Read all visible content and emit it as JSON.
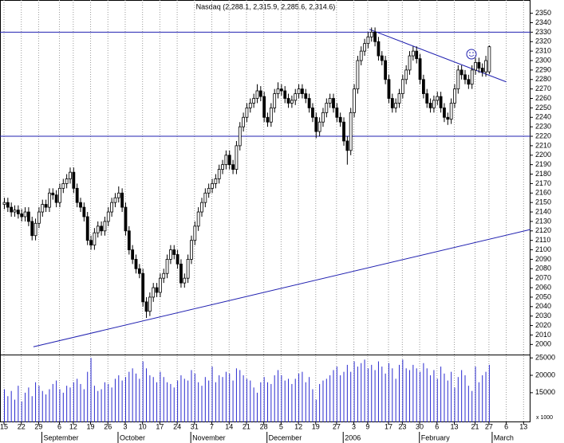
{
  "chart_data": {
    "type": "candlestick",
    "title": "Nasdaq (2,288.1, 2,315.9, 2,285.6, 2,314.6)",
    "volume_unit_label": "x 1000",
    "up_color": "#ffffff",
    "down_color": "#000000",
    "volume_color": "#2a2ad0",
    "line_color": "#2020b0",
    "open": [
      2148,
      2150,
      2145,
      2140,
      2142,
      2138,
      2135,
      2140,
      2130,
      2115,
      2128,
      2140,
      2148,
      2145,
      2160,
      2158,
      2150,
      2165,
      2170,
      2175,
      2182,
      2165,
      2150,
      2145,
      2135,
      2110,
      2105,
      2118,
      2125,
      2120,
      2130,
      2140,
      2150,
      2155,
      2160,
      2145,
      2120,
      2100,
      2090,
      2080,
      2075,
      2045,
      2035,
      2050,
      2060,
      2055,
      2070,
      2075,
      2090,
      2100,
      2095,
      2085,
      2065,
      2070,
      2090,
      2110,
      2125,
      2140,
      2150,
      2160,
      2165,
      2170,
      2175,
      2185,
      2190,
      2200,
      2190,
      2185,
      2210,
      2230,
      2240,
      2250,
      2255,
      2260,
      2268,
      2262,
      2240,
      2235,
      2250,
      2265,
      2270,
      2268,
      2260,
      2255,
      2258,
      2265,
      2270,
      2265,
      2260,
      2250,
      2240,
      2225,
      2235,
      2245,
      2255,
      2260,
      2250,
      2240,
      2235,
      2215,
      2205,
      2245,
      2270,
      2300,
      2310,
      2318,
      2325,
      2330,
      2320,
      2305,
      2300,
      2280,
      2260,
      2250,
      2255,
      2265,
      2280,
      2290,
      2305,
      2310,
      2302,
      2280,
      2265,
      2255,
      2250,
      2258,
      2262,
      2250,
      2240,
      2238,
      2255,
      2270,
      2290,
      2285,
      2280,
      2275,
      2290,
      2298,
      2292,
      2288,
      2288.1
    ],
    "high": [
      2155,
      2155,
      2150,
      2147,
      2147,
      2143,
      2145,
      2145,
      2135,
      2133,
      2145,
      2153,
      2153,
      2165,
      2165,
      2163,
      2170,
      2175,
      2180,
      2187,
      2187,
      2170,
      2155,
      2150,
      2140,
      2115,
      2123,
      2130,
      2130,
      2135,
      2145,
      2155,
      2160,
      2167,
      2165,
      2150,
      2125,
      2105,
      2095,
      2085,
      2080,
      2050,
      2055,
      2065,
      2065,
      2075,
      2080,
      2095,
      2105,
      2105,
      2100,
      2090,
      2075,
      2095,
      2115,
      2130,
      2145,
      2155,
      2165,
      2170,
      2175,
      2180,
      2190,
      2195,
      2205,
      2205,
      2195,
      2215,
      2235,
      2245,
      2255,
      2260,
      2265,
      2275,
      2273,
      2267,
      2245,
      2255,
      2270,
      2277,
      2275,
      2273,
      2265,
      2263,
      2270,
      2275,
      2275,
      2270,
      2265,
      2255,
      2245,
      2240,
      2250,
      2260,
      2265,
      2265,
      2255,
      2245,
      2240,
      2220,
      2250,
      2275,
      2305,
      2315,
      2323,
      2330,
      2335,
      2335,
      2325,
      2310,
      2305,
      2285,
      2265,
      2260,
      2270,
      2285,
      2295,
      2310,
      2315,
      2315,
      2307,
      2285,
      2270,
      2260,
      2263,
      2267,
      2267,
      2255,
      2245,
      2260,
      2275,
      2295,
      2295,
      2290,
      2285,
      2295,
      2303,
      2303,
      2297,
      2305,
      2315.9
    ],
    "low": [
      2143,
      2140,
      2135,
      2135,
      2133,
      2130,
      2130,
      2125,
      2110,
      2110,
      2123,
      2135,
      2140,
      2140,
      2153,
      2145,
      2145,
      2160,
      2165,
      2170,
      2160,
      2145,
      2140,
      2130,
      2105,
      2100,
      2100,
      2113,
      2115,
      2115,
      2125,
      2135,
      2145,
      2150,
      2140,
      2115,
      2095,
      2085,
      2075,
      2070,
      2040,
      2028,
      2030,
      2045,
      2050,
      2050,
      2065,
      2070,
      2085,
      2090,
      2080,
      2060,
      2060,
      2065,
      2085,
      2105,
      2120,
      2135,
      2145,
      2155,
      2160,
      2165,
      2170,
      2180,
      2185,
      2185,
      2180,
      2180,
      2205,
      2225,
      2235,
      2245,
      2250,
      2255,
      2257,
      2235,
      2230,
      2230,
      2245,
      2260,
      2263,
      2255,
      2250,
      2250,
      2253,
      2260,
      2260,
      2255,
      2245,
      2235,
      2218,
      2220,
      2230,
      2240,
      2250,
      2245,
      2235,
      2230,
      2210,
      2190,
      2200,
      2240,
      2265,
      2295,
      2305,
      2313,
      2320,
      2315,
      2300,
      2295,
      2275,
      2255,
      2245,
      2245,
      2250,
      2260,
      2275,
      2285,
      2300,
      2297,
      2275,
      2260,
      2250,
      2245,
      2245,
      2253,
      2245,
      2235,
      2232,
      2233,
      2250,
      2265,
      2280,
      2275,
      2270,
      2270,
      2285,
      2287,
      2283,
      2283,
      2285.6
    ],
    "close": [
      2150,
      2145,
      2140,
      2142,
      2138,
      2135,
      2140,
      2130,
      2115,
      2128,
      2140,
      2148,
      2145,
      2160,
      2158,
      2150,
      2165,
      2170,
      2175,
      2182,
      2165,
      2150,
      2145,
      2135,
      2110,
      2105,
      2118,
      2125,
      2120,
      2130,
      2140,
      2150,
      2155,
      2160,
      2145,
      2120,
      2100,
      2090,
      2080,
      2075,
      2045,
      2035,
      2050,
      2060,
      2055,
      2070,
      2075,
      2090,
      2100,
      2095,
      2085,
      2065,
      2070,
      2090,
      2110,
      2125,
      2140,
      2150,
      2160,
      2165,
      2170,
      2175,
      2185,
      2190,
      2200,
      2190,
      2185,
      2210,
      2230,
      2240,
      2250,
      2255,
      2260,
      2268,
      2262,
      2240,
      2235,
      2250,
      2265,
      2270,
      2268,
      2260,
      2255,
      2258,
      2265,
      2270,
      2265,
      2260,
      2250,
      2240,
      2225,
      2235,
      2245,
      2255,
      2260,
      2250,
      2240,
      2235,
      2215,
      2205,
      2245,
      2270,
      2300,
      2310,
      2318,
      2325,
      2330,
      2320,
      2305,
      2300,
      2280,
      2260,
      2250,
      2255,
      2265,
      2280,
      2290,
      2305,
      2310,
      2302,
      2280,
      2265,
      2255,
      2250,
      2258,
      2262,
      2250,
      2240,
      2238,
      2255,
      2270,
      2290,
      2285,
      2280,
      2275,
      2290,
      2298,
      2292,
      2288,
      2300,
      2314.6
    ],
    "volume": [
      16000,
      14000,
      15500,
      13000,
      17000,
      12500,
      15000,
      16500,
      14000,
      18000,
      17000,
      15500,
      14500,
      16000,
      17500,
      18500,
      16000,
      15000,
      17000,
      16500,
      18000,
      19000,
      17500,
      16000,
      21000,
      25000,
      17000,
      15500,
      16000,
      18000,
      17500,
      16500,
      19000,
      20000,
      18500,
      19500,
      21000,
      22000,
      20500,
      19000,
      24000,
      22000,
      20000,
      19500,
      18000,
      21000,
      19500,
      18000,
      17500,
      16500,
      18500,
      20000,
      19000,
      18500,
      21500,
      20500,
      18000,
      17000,
      19500,
      18500,
      22500,
      18000,
      20000,
      19500,
      21000,
      20500,
      18500,
      22000,
      21500,
      20000,
      19000,
      18500,
      16500,
      15000,
      18000,
      19500,
      18000,
      17500,
      20000,
      21500,
      20000,
      18500,
      19000,
      17500,
      19000,
      20500,
      21000,
      18000,
      19500,
      16000,
      13000,
      17500,
      18500,
      19000,
      20000,
      21500,
      22500,
      20000,
      21000,
      23000,
      21000,
      24000,
      22500,
      23500,
      24500,
      22000,
      23000,
      21500,
      24000,
      22500,
      20500,
      23500,
      22000,
      19000,
      23000,
      24500,
      22000,
      21500,
      23000,
      22000,
      21000,
      23500,
      22000,
      20000,
      21500,
      19000,
      22500,
      20500,
      18500,
      21000,
      16500,
      19500,
      21500,
      20000,
      17000,
      15500,
      22500,
      18000,
      20000,
      21000,
      23000
    ],
    "xlim": [
      -1.15,
      152
    ],
    "ylim": [
      1991,
      2364
    ],
    "yticks": [
      2000,
      2010,
      2020,
      2030,
      2040,
      2050,
      2060,
      2070,
      2080,
      2090,
      2100,
      2110,
      2120,
      2130,
      2140,
      2150,
      2160,
      2170,
      2180,
      2190,
      2200,
      2210,
      2220,
      2230,
      2240,
      2250,
      2260,
      2270,
      2280,
      2290,
      2300,
      2310,
      2320,
      2330,
      2340,
      2350
    ],
    "volume_ylim": [
      6500,
      25500
    ],
    "volume_ticks": [
      15000,
      20000,
      25000
    ],
    "xticks": [
      {
        "value": 0,
        "label": "15"
      },
      {
        "value": 5,
        "label": "22"
      },
      {
        "value": 10,
        "label": "29"
      },
      {
        "value": 16,
        "label": "6"
      },
      {
        "value": 20,
        "label": "12"
      },
      {
        "value": 25,
        "label": "19"
      },
      {
        "value": 30,
        "label": "26"
      },
      {
        "value": 35,
        "label": "3"
      },
      {
        "value": 40,
        "label": "10"
      },
      {
        "value": 45,
        "label": "17"
      },
      {
        "value": 50,
        "label": "24"
      },
      {
        "value": 55,
        "label": "31"
      },
      {
        "value": 60,
        "label": "7"
      },
      {
        "value": 65,
        "label": "14"
      },
      {
        "value": 70,
        "label": "21"
      },
      {
        "value": 75,
        "label": "28"
      },
      {
        "value": 80,
        "label": "5"
      },
      {
        "value": 85,
        "label": "12"
      },
      {
        "value": 90,
        "label": "19"
      },
      {
        "value": 96,
        "label": "27"
      },
      {
        "value": 101,
        "label": "3"
      },
      {
        "value": 105,
        "label": "9"
      },
      {
        "value": 111,
        "label": "17"
      },
      {
        "value": 115,
        "label": "23"
      },
      {
        "value": 120,
        "label": "30"
      },
      {
        "value": 125,
        "label": "6"
      },
      {
        "value": 130,
        "label": "13"
      },
      {
        "value": 136,
        "label": "21"
      },
      {
        "value": 140,
        "label": "27"
      },
      {
        "value": 145,
        "label": "6"
      },
      {
        "value": 150,
        "label": "13"
      }
    ],
    "month_labels": [
      {
        "value": 13,
        "label": "September"
      },
      {
        "value": 35,
        "label": "October"
      },
      {
        "value": 56,
        "label": "November"
      },
      {
        "value": 78,
        "label": "December"
      },
      {
        "value": 100,
        "label": "2006"
      },
      {
        "value": 122,
        "label": "February"
      },
      {
        "value": 143,
        "label": "March"
      }
    ],
    "hlines": [
      2330,
      2220
    ],
    "trendlines": [
      {
        "x": [
          8.5,
          152
        ],
        "y": [
          1997.5,
          2121.5
        ]
      },
      {
        "x": [
          105.5,
          145
        ],
        "y": [
          2333,
          2277.5
        ]
      }
    ],
    "grid": true
  }
}
